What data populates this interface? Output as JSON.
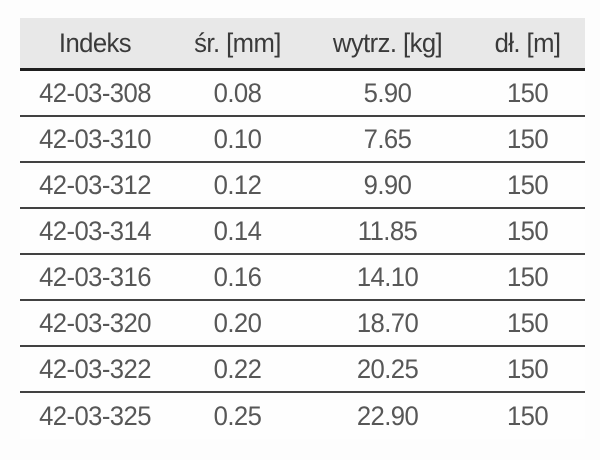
{
  "page": {
    "background": "#fdfdfd"
  },
  "table": {
    "columns": [
      "Indeks",
      "śr. [mm]",
      "wytrz. [kg]",
      "dł. [m]"
    ],
    "rows": [
      [
        "42-03-308",
        "0.08",
        "5.90",
        "150"
      ],
      [
        "42-03-310",
        "0.10",
        "7.65",
        "150"
      ],
      [
        "42-03-312",
        "0.12",
        "9.90",
        "150"
      ],
      [
        "42-03-314",
        "0.14",
        "11.85",
        "150"
      ],
      [
        "42-03-316",
        "0.16",
        "14.10",
        "150"
      ],
      [
        "42-03-320",
        "0.20",
        "18.70",
        "150"
      ],
      [
        "42-03-322",
        "0.22",
        "20.25",
        "150"
      ],
      [
        "42-03-325",
        "0.25",
        "22.90",
        "150"
      ]
    ],
    "colors": {
      "page_bg": "#fdfdfd",
      "header_bg": "#e8e8e8",
      "header_text": "#3a3a3a",
      "cell_text": "#575757",
      "header_rule": "#1f1f1f",
      "row_rule": "#424242"
    }
  }
}
